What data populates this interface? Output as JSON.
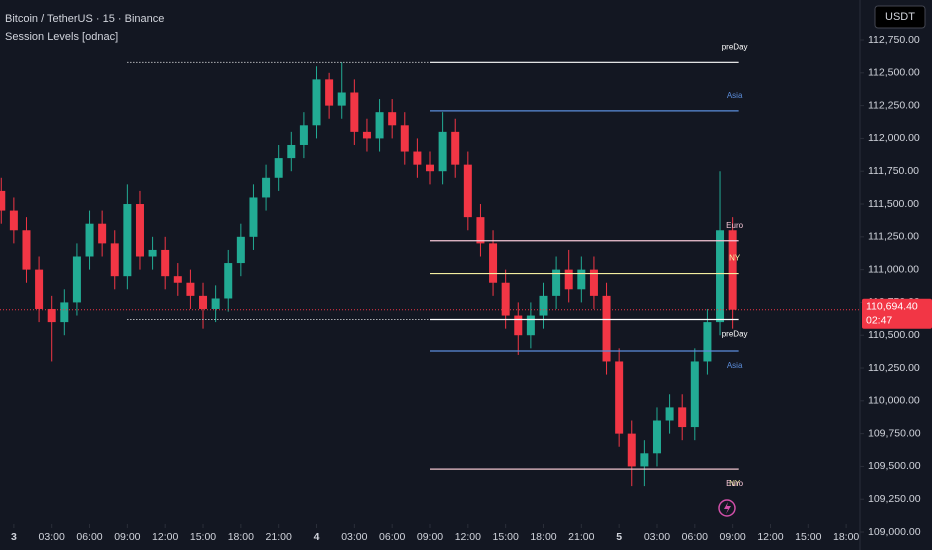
{
  "header": {
    "symbol": "Bitcoin / TetherUS · 15 · Binance",
    "indicator": "Session Levels [odnac]",
    "currency": "USDT"
  },
  "chart_data": {
    "type": "candlestick",
    "x": [
      -1,
      0,
      1,
      2,
      3,
      4,
      5,
      6,
      7,
      8,
      9,
      10,
      11,
      12,
      13,
      14,
      15,
      16,
      17,
      18,
      19,
      20,
      21,
      22,
      23,
      24,
      25,
      26,
      27,
      28,
      29,
      30,
      31,
      32,
      33,
      34,
      35,
      36,
      37,
      38,
      39,
      40,
      41,
      42,
      43,
      44,
      45,
      46,
      47,
      48,
      49,
      50,
      51,
      52,
      53,
      54,
      55,
      56,
      57
    ],
    "open": [
      111600,
      111450,
      111300,
      111000,
      110700,
      110600,
      110750,
      111100,
      111350,
      111200,
      110950,
      111500,
      111100,
      111150,
      110950,
      110900,
      110800,
      110700,
      110780,
      111050,
      111250,
      111550,
      111700,
      111850,
      111950,
      112100,
      112450,
      112250,
      112350,
      112050,
      112000,
      112200,
      112100,
      111900,
      111800,
      111750,
      112050,
      111800,
      111400,
      111200,
      110900,
      110650,
      110500,
      110650,
      110800,
      111000,
      110850,
      111000,
      110800,
      110300,
      109750,
      109500,
      109600,
      109850,
      109950,
      109800,
      110300,
      110600,
      111300
    ],
    "high": [
      111700,
      111550,
      111400,
      111100,
      110800,
      110850,
      111200,
      111450,
      111450,
      111300,
      111650,
      111600,
      111250,
      111250,
      111050,
      111000,
      110900,
      110880,
      111150,
      111350,
      111650,
      111800,
      111950,
      112050,
      112200,
      112550,
      112500,
      112580,
      112450,
      112150,
      112300,
      112300,
      112200,
      112000,
      111900,
      112200,
      112150,
      111900,
      111500,
      111300,
      111000,
      110750,
      110750,
      110900,
      111100,
      111150,
      111100,
      111100,
      110900,
      110400,
      109850,
      109700,
      109950,
      110050,
      110050,
      110400,
      110700,
      111750,
      111400
    ],
    "low": [
      111350,
      111200,
      110900,
      110600,
      110300,
      110500,
      110650,
      111000,
      111100,
      110850,
      110850,
      111000,
      111000,
      110850,
      110800,
      110700,
      110550,
      110600,
      110680,
      110950,
      111150,
      111450,
      111600,
      111750,
      111850,
      112000,
      112150,
      112150,
      111950,
      111900,
      111900,
      112000,
      111800,
      111700,
      111650,
      111650,
      111700,
      111300,
      111100,
      110800,
      110550,
      110350,
      110400,
      110550,
      110700,
      110750,
      110750,
      110700,
      110200,
      109650,
      109350,
      109350,
      109500,
      109750,
      109700,
      109700,
      110200,
      110500,
      110550
    ],
    "close": [
      111450,
      111300,
      111000,
      110700,
      110600,
      110750,
      111100,
      111350,
      111200,
      110950,
      111500,
      111100,
      111150,
      110950,
      110900,
      110800,
      110700,
      110780,
      111050,
      111250,
      111550,
      111700,
      111850,
      111950,
      112100,
      112450,
      112250,
      112350,
      112050,
      112000,
      112200,
      112100,
      111900,
      111800,
      111750,
      112050,
      111800,
      111400,
      111200,
      110900,
      110650,
      110500,
      110650,
      110800,
      111000,
      110850,
      111000,
      110800,
      110300,
      109750,
      109500,
      109600,
      109850,
      109950,
      109800,
      110300,
      110600,
      111300,
      110694.4
    ],
    "last_price_label": "110,694.40",
    "countdown": "02:47",
    "up_color": "#22ab94",
    "down_color": "#f23645",
    "levels": [
      {
        "label": "preDay",
        "value": 112580,
        "color": "#ffffff",
        "start": 9,
        "solid_from": 33,
        "label_side": "above"
      },
      {
        "label": "Asia",
        "value": 112210,
        "color": "#5b8ddb",
        "start": 33,
        "label_side": "above"
      },
      {
        "label": "Euro",
        "value": 111220,
        "color": "#f5c6d6",
        "start": 33,
        "label_side": "above"
      },
      {
        "label": "NY",
        "value": 110970,
        "color": "#f3eea0",
        "start": 33,
        "label_side": "above"
      },
      {
        "label": "preDay",
        "value": 110620,
        "color": "#ffffff",
        "start": 9,
        "solid_from": 33,
        "label_side": "below"
      },
      {
        "label": "Asia",
        "value": 110380,
        "color": "#5b8ddb",
        "start": 33,
        "label_side": "below"
      },
      {
        "label": "NY",
        "value": 109480,
        "color": "#f3eea0",
        "start": 33,
        "label_side": "below"
      },
      {
        "label": "Euro",
        "value": 109480,
        "color": "#f5c6d6",
        "start": 33,
        "label_side": "below"
      }
    ],
    "xlim": [
      -1.1,
      67.1
    ],
    "ylim": [
      108863,
      113055
    ],
    "xticks": [
      {
        "value": 0,
        "label": "3"
      },
      {
        "value": 3,
        "label": "03:00"
      },
      {
        "value": 6,
        "label": "06:00"
      },
      {
        "value": 9,
        "label": "09:00"
      },
      {
        "value": 12,
        "label": "12:00"
      },
      {
        "value": 15,
        "label": "15:00"
      },
      {
        "value": 18,
        "label": "18:00"
      },
      {
        "value": 21,
        "label": "21:00"
      },
      {
        "value": 24,
        "label": "4"
      },
      {
        "value": 27,
        "label": "03:00"
      },
      {
        "value": 30,
        "label": "06:00"
      },
      {
        "value": 33,
        "label": "09:00"
      },
      {
        "value": 36,
        "label": "12:00"
      },
      {
        "value": 39,
        "label": "15:00"
      },
      {
        "value": 42,
        "label": "18:00"
      },
      {
        "value": 45,
        "label": "21:00"
      },
      {
        "value": 48,
        "label": "5"
      },
      {
        "value": 51,
        "label": "03:00"
      },
      {
        "value": 54,
        "label": "06:00"
      },
      {
        "value": 57,
        "label": "09:00"
      },
      {
        "value": 60,
        "label": "12:00"
      },
      {
        "value": 63,
        "label": "15:00"
      },
      {
        "value": 66,
        "label": "18:00"
      }
    ],
    "yticks": [
      {
        "value": 109000,
        "label": "109,000.00"
      },
      {
        "value": 109250,
        "label": "109,250.00"
      },
      {
        "value": 109500,
        "label": "109,500.00"
      },
      {
        "value": 109750,
        "label": "109,750.00"
      },
      {
        "value": 110000,
        "label": "110,000.00"
      },
      {
        "value": 110250,
        "label": "110,250.00"
      },
      {
        "value": 110500,
        "label": "110,500.00"
      },
      {
        "value": 110750,
        "label": "110,750.00"
      },
      {
        "value": 111000,
        "label": "111,000.00"
      },
      {
        "value": 111250,
        "label": "111,250.00"
      },
      {
        "value": 111500,
        "label": "111,500.00"
      },
      {
        "value": 111750,
        "label": "111,750.00"
      },
      {
        "value": 112000,
        "label": "112,000.00"
      },
      {
        "value": 112250,
        "label": "112,250.00"
      },
      {
        "value": 112500,
        "label": "112,500.00"
      },
      {
        "value": 112750,
        "label": "112,750.00"
      }
    ]
  }
}
